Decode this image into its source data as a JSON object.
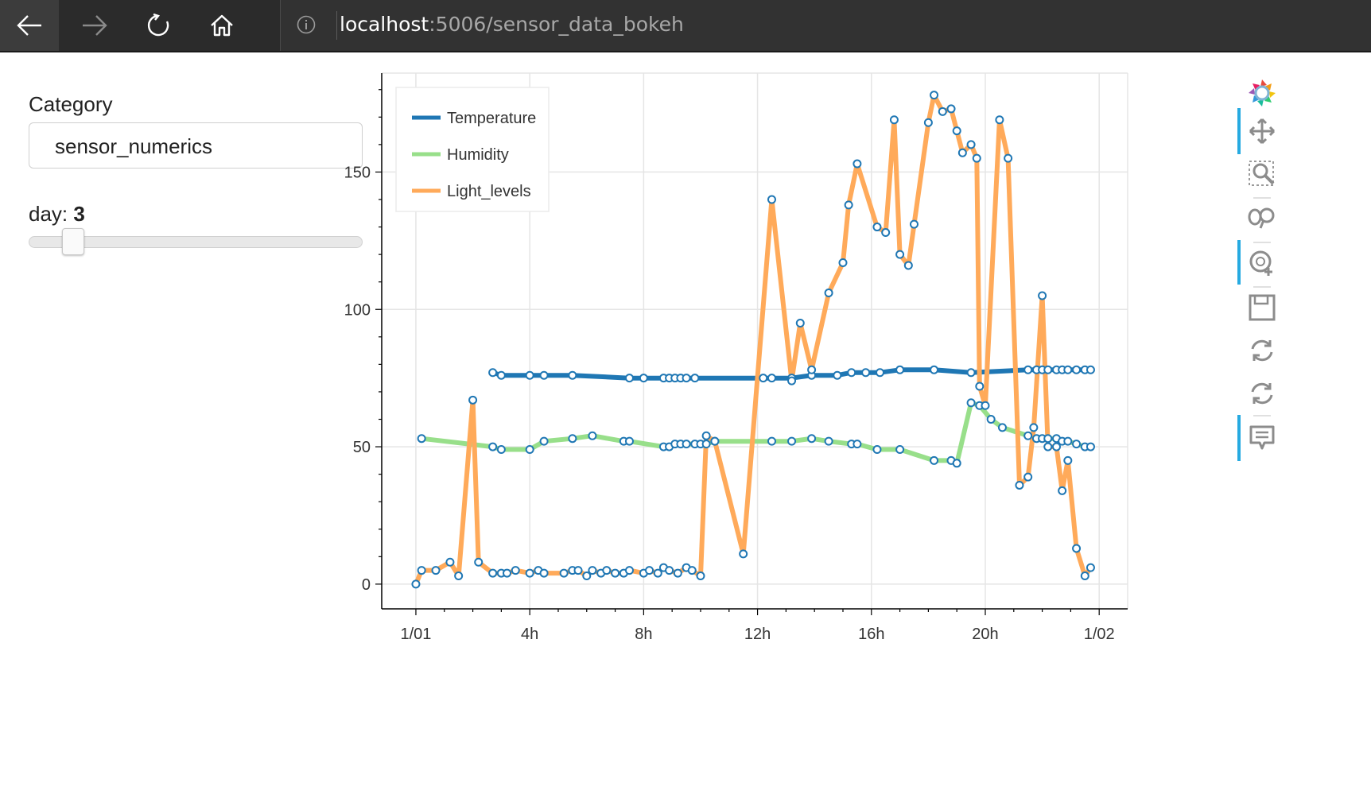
{
  "browser": {
    "url_host": "localhost",
    "url_path": ":5006/sensor_data_bokeh",
    "icons": [
      "back-arrow-icon",
      "forward-arrow-icon",
      "refresh-icon",
      "home-icon",
      "info-icon"
    ]
  },
  "widgets": {
    "category_label": "Category",
    "category_value": "sensor_numerics",
    "day_label": "day:",
    "day_value": "3",
    "day_slider_fraction": 0.09
  },
  "toolbar": {
    "tools": [
      "bokeh-logo-icon",
      "pan-icon",
      "box-zoom-icon",
      "wheel-zoom-icon",
      "lasso-icon",
      "save-icon",
      "reset-icon",
      "refresh-icon",
      "hover-icon"
    ],
    "active_color": "#26aae1"
  },
  "chart_data": {
    "type": "line",
    "title": "",
    "xlabel": "",
    "ylabel": "",
    "x_ticks": [
      "1/01",
      "4h",
      "8h",
      "12h",
      "16h",
      "20h",
      "1/02"
    ],
    "x_tick_hours": [
      0,
      4,
      8,
      12,
      16,
      20,
      24
    ],
    "y_ticks": [
      0,
      50,
      100,
      150
    ],
    "xlim": [
      -1.2,
      25
    ],
    "ylim": [
      -9,
      186
    ],
    "grid": true,
    "legend_position": "top-left",
    "marker_color": "#1f77b4",
    "series": [
      {
        "name": "Temperature",
        "color": "#1f77b4",
        "hours": [
          2.7,
          3.0,
          4.0,
          4.5,
          5.5,
          7.5,
          8.0,
          8.7,
          8.9,
          9.1,
          9.3,
          9.5,
          9.8,
          12.2,
          12.5,
          13.2,
          13.9,
          14.8,
          15.3,
          15.8,
          16.3,
          17.0,
          18.2,
          19.5,
          21.5,
          21.8,
          22.0,
          22.2,
          22.5,
          22.7,
          22.9,
          23.2,
          23.5,
          23.7
        ],
        "values": [
          77,
          76,
          76,
          76,
          76,
          75,
          75,
          75,
          75,
          75,
          75,
          75,
          75,
          75,
          75,
          75,
          76,
          76,
          77,
          77,
          77,
          78,
          78,
          77,
          78,
          78,
          78,
          78,
          78,
          78,
          78,
          78,
          78,
          78
        ]
      },
      {
        "name": "Humidity",
        "color": "#98df8a",
        "hours": [
          0.2,
          2.7,
          3.0,
          4.0,
          4.5,
          5.5,
          6.2,
          7.3,
          7.5,
          8.7,
          8.9,
          9.1,
          9.3,
          9.5,
          9.8,
          10.0,
          10.2,
          10.5,
          12.5,
          13.2,
          13.9,
          14.5,
          15.3,
          15.5,
          16.2,
          17.0,
          18.2,
          18.8,
          19.0,
          19.5,
          19.8,
          20.2,
          20.6,
          21.5,
          21.8,
          22.0,
          22.2,
          22.5,
          22.7,
          22.9,
          23.2,
          23.5,
          23.7
        ],
        "values": [
          53,
          50,
          49,
          49,
          52,
          53,
          54,
          52,
          52,
          50,
          50,
          51,
          51,
          51,
          51,
          51,
          51,
          52,
          52,
          52,
          53,
          52,
          51,
          51,
          49,
          49,
          45,
          45,
          44,
          66,
          65,
          60,
          57,
          54,
          53,
          53,
          53,
          53,
          52,
          52,
          51,
          50,
          50
        ]
      },
      {
        "name": "Light_levels",
        "color": "#ffaa5a",
        "hours": [
          0.0,
          0.2,
          0.7,
          1.2,
          1.5,
          2.0,
          2.2,
          2.7,
          3.0,
          3.2,
          3.5,
          4.0,
          4.3,
          4.5,
          5.2,
          5.5,
          5.7,
          6.0,
          6.2,
          6.5,
          6.7,
          7.0,
          7.3,
          7.5,
          8.0,
          8.2,
          8.5,
          8.7,
          8.9,
          9.2,
          9.5,
          9.7,
          10.0,
          10.2,
          10.5,
          11.5,
          12.5,
          13.2,
          13.5,
          13.9,
          14.5,
          15.0,
          15.2,
          15.5,
          16.2,
          16.5,
          16.8,
          17.0,
          17.3,
          17.5,
          18.0,
          18.2,
          18.5,
          18.8,
          19.0,
          19.2,
          19.5,
          19.7,
          19.8,
          20.0,
          20.5,
          20.8,
          21.2,
          21.5,
          21.7,
          22.0,
          22.2,
          22.5,
          22.7,
          22.9,
          23.2,
          23.5,
          23.7
        ],
        "values": [
          0,
          5,
          5,
          8,
          3,
          67,
          8,
          4,
          4,
          4,
          5,
          4,
          5,
          4,
          4,
          5,
          5,
          3,
          5,
          4,
          5,
          4,
          4,
          5,
          4,
          5,
          4,
          6,
          5,
          4,
          6,
          5,
          3,
          54,
          52,
          11,
          140,
          74,
          95,
          78,
          106,
          117,
          138,
          153,
          130,
          128,
          169,
          120,
          116,
          131,
          168,
          178,
          172,
          173,
          165,
          157,
          160,
          155,
          72,
          65,
          169,
          155,
          36,
          39,
          57,
          105,
          50,
          50,
          34,
          45,
          13,
          3,
          6
        ]
      }
    ]
  }
}
